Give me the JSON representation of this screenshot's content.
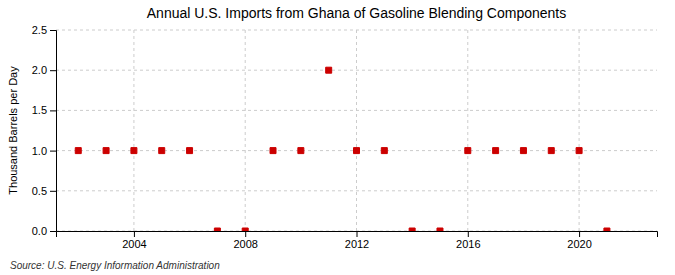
{
  "chart_data": {
    "type": "scatter",
    "title": "Annual U.S. Imports from Ghana of Gasoline Blending Components",
    "ylabel": "Thousand Barrels per Day",
    "source": "Source: U.S. Energy Information Administration",
    "x": [
      2002,
      2003,
      2004,
      2005,
      2006,
      2007,
      2008,
      2009,
      2010,
      2011,
      2012,
      2013,
      2014,
      2015,
      2016,
      2017,
      2018,
      2019,
      2020,
      2021
    ],
    "values": [
      1.0,
      1.0,
      1.0,
      1.0,
      1.0,
      0.0,
      0.0,
      1.0,
      1.0,
      2.0,
      1.0,
      1.0,
      0.0,
      0.0,
      1.0,
      1.0,
      1.0,
      1.0,
      1.0,
      0.0
    ],
    "color": "#cc0000",
    "marker": "square",
    "xlim": [
      2001.2,
      2022.8
    ],
    "xticks": [
      2004,
      2008,
      2012,
      2016,
      2020
    ],
    "ylim": [
      0.0,
      2.5
    ],
    "yticks": [
      {
        "value": 0.0,
        "label": "0.0"
      },
      0.5,
      {
        "value": 1.0,
        "label": "1.0"
      },
      1.5,
      {
        "value": 2.0,
        "label": "2.0"
      },
      2.5
    ],
    "grid": true
  }
}
